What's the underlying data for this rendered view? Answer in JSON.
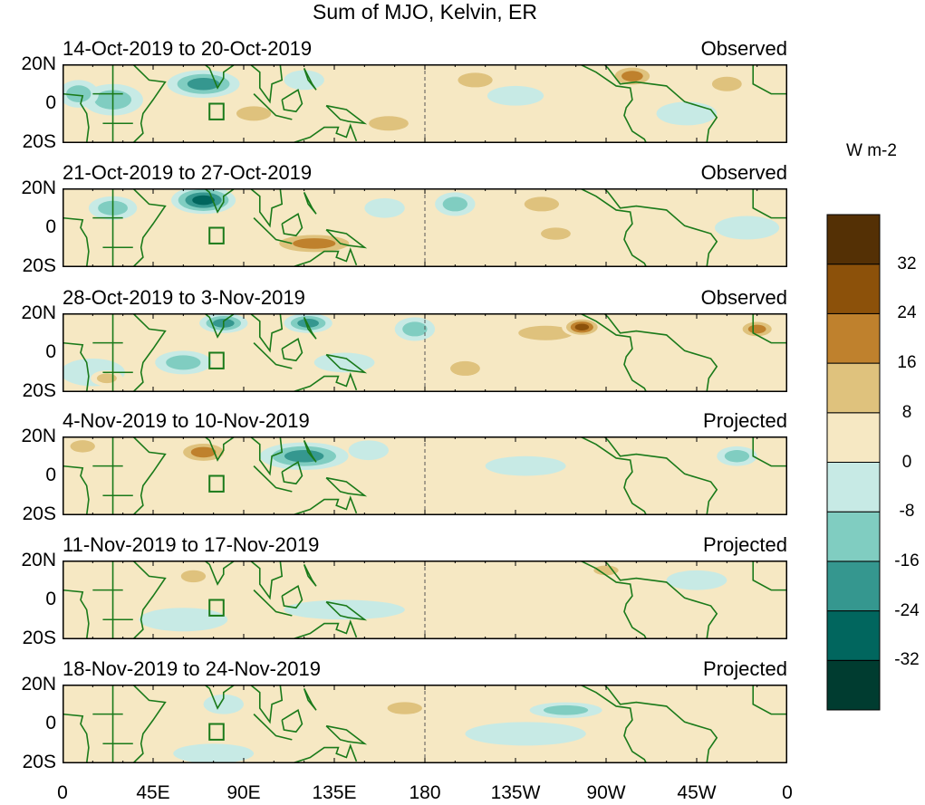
{
  "chart_data": {
    "type": "heatmap",
    "title": "Sum of MJO, Kelvin, ER",
    "units": "W m-2",
    "x_ticks": [
      "0",
      "45E",
      "90E",
      "135E",
      "180",
      "135W",
      "90W",
      "45W",
      "0"
    ],
    "y_ticks": [
      "20N",
      "0",
      "20S"
    ],
    "lon_range": [
      0,
      360
    ],
    "lat_range": [
      -20,
      20
    ],
    "colorbar": {
      "levels": [
        -40,
        -32,
        -24,
        -16,
        -8,
        0,
        8,
        16,
        24,
        32,
        40
      ],
      "tick_labels": [
        "32",
        "24",
        "16",
        "8",
        "0",
        "-8",
        "-16",
        "-24",
        "-32"
      ],
      "colors": [
        "#003c30",
        "#01665e",
        "#35978f",
        "#80cdc1",
        "#c7eae5",
        "#f6e8c3",
        "#dfc27d",
        "#bf812d",
        "#8c510a",
        "#543005"
      ]
    },
    "panels": [
      {
        "dates": "14-Oct-2019 to 20-Oct-2019",
        "status": "Observed",
        "features": [
          [
            70,
            10,
            18,
            7,
            -24
          ],
          [
            25,
            2,
            15,
            8,
            -16
          ],
          [
            8,
            5,
            10,
            7,
            -16
          ],
          [
            95,
            -5,
            14,
            6,
            16
          ],
          [
            162,
            -10,
            16,
            6,
            16
          ],
          [
            205,
            12,
            14,
            6,
            16
          ],
          [
            225,
            4,
            14,
            5,
            -8
          ],
          [
            283,
            14,
            12,
            6,
            24
          ],
          [
            330,
            10,
            12,
            6,
            16
          ],
          [
            310,
            -5,
            15,
            6,
            -8
          ],
          [
            120,
            12,
            10,
            5,
            -8
          ]
        ]
      },
      {
        "dates": "21-Oct-2019 to 27-Oct-2019",
        "status": "Observed",
        "features": [
          [
            70,
            14,
            16,
            7,
            -32
          ],
          [
            25,
            10,
            12,
            6,
            -16
          ],
          [
            125,
            -8,
            24,
            6,
            24
          ],
          [
            195,
            12,
            10,
            6,
            -16
          ],
          [
            238,
            12,
            14,
            6,
            16
          ],
          [
            245,
            -3,
            12,
            5,
            16
          ],
          [
            340,
            0,
            16,
            6,
            -8
          ],
          [
            160,
            10,
            10,
            5,
            -8
          ],
          [
            90,
            -5,
            10,
            5,
            8
          ]
        ]
      },
      {
        "dates": "28-Oct-2019 to 3-Nov-2019",
        "status": "Observed",
        "features": [
          [
            60,
            -5,
            14,
            6,
            -16
          ],
          [
            80,
            15,
            12,
            5,
            -24
          ],
          [
            122,
            15,
            12,
            5,
            -24
          ],
          [
            175,
            12,
            10,
            6,
            -16
          ],
          [
            240,
            10,
            22,
            6,
            16
          ],
          [
            258,
            13,
            10,
            5,
            32
          ],
          [
            200,
            -8,
            12,
            6,
            16
          ],
          [
            15,
            -10,
            16,
            7,
            -8
          ],
          [
            22,
            -13,
            8,
            4,
            16
          ],
          [
            345,
            12,
            10,
            5,
            24
          ],
          [
            140,
            -5,
            15,
            5,
            -8
          ]
        ]
      },
      {
        "dates": "4-Nov-2019 to 10-Nov-2019",
        "status": "Projected",
        "features": [
          [
            70,
            12,
            14,
            6,
            24
          ],
          [
            10,
            15,
            10,
            5,
            16
          ],
          [
            120,
            10,
            22,
            7,
            -24
          ],
          [
            152,
            13,
            10,
            5,
            -8
          ],
          [
            230,
            5,
            20,
            5,
            -8
          ],
          [
            265,
            15,
            10,
            4,
            8
          ],
          [
            335,
            10,
            10,
            5,
            -16
          ],
          [
            40,
            -8,
            15,
            6,
            8
          ]
        ]
      },
      {
        "dates": "11-Nov-2019 to 17-Nov-2019",
        "status": "Projected",
        "features": [
          [
            20,
            15,
            10,
            5,
            8
          ],
          [
            65,
            12,
            10,
            5,
            16
          ],
          [
            135,
            15,
            16,
            5,
            8
          ],
          [
            60,
            -10,
            22,
            6,
            -8
          ],
          [
            140,
            -5,
            30,
            5,
            -8
          ],
          [
            315,
            10,
            15,
            5,
            -8
          ],
          [
            270,
            15,
            10,
            4,
            16
          ],
          [
            240,
            -8,
            20,
            5,
            8
          ]
        ]
      },
      {
        "dates": "18-Nov-2019 to 24-Nov-2019",
        "status": "Projected",
        "features": [
          [
            75,
            -15,
            20,
            5,
            -8
          ],
          [
            250,
            7,
            18,
            4,
            -16
          ],
          [
            170,
            8,
            14,
            5,
            16
          ],
          [
            120,
            15,
            12,
            5,
            8
          ],
          [
            80,
            10,
            10,
            5,
            -8
          ],
          [
            230,
            -5,
            30,
            6,
            -8
          ],
          [
            25,
            -10,
            12,
            5,
            8
          ]
        ]
      }
    ]
  }
}
